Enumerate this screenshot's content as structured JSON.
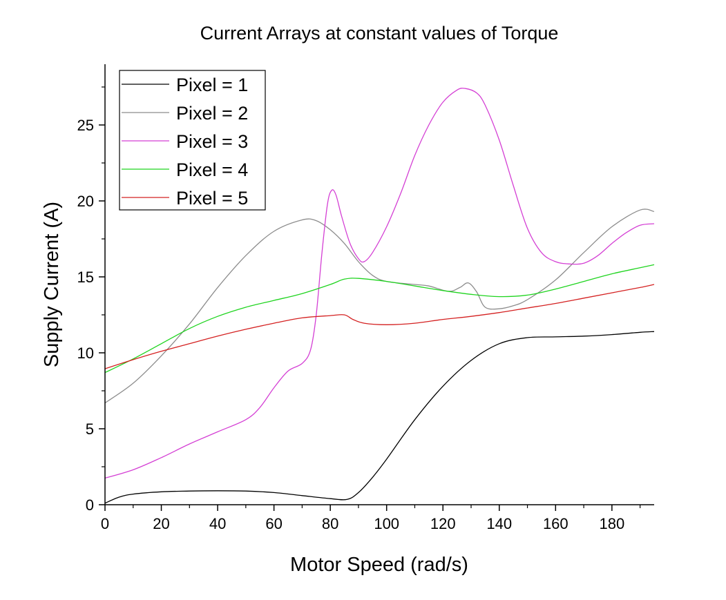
{
  "chart_data": {
    "type": "line",
    "title": "Current Arrays at constant values of Torque",
    "xlabel": "Motor Speed (rad/s)",
    "ylabel": "Supply Current (A)",
    "xlim": [
      0,
      195
    ],
    "ylim": [
      0,
      29
    ],
    "x_ticks": [
      0,
      20,
      40,
      60,
      80,
      100,
      120,
      140,
      160,
      180
    ],
    "y_ticks": [
      0,
      5,
      10,
      15,
      20,
      25
    ],
    "grid": false,
    "legend_position": "top-left",
    "series": [
      {
        "name": "Pixel = 1",
        "color": "#000000",
        "points": [
          [
            0,
            0.1
          ],
          [
            5,
            0.5
          ],
          [
            10,
            0.7
          ],
          [
            20,
            0.85
          ],
          [
            30,
            0.9
          ],
          [
            40,
            0.92
          ],
          [
            50,
            0.9
          ],
          [
            60,
            0.8
          ],
          [
            70,
            0.6
          ],
          [
            80,
            0.4
          ],
          [
            86,
            0.35
          ],
          [
            90,
            0.8
          ],
          [
            95,
            1.8
          ],
          [
            100,
            3
          ],
          [
            110,
            5.6
          ],
          [
            120,
            7.8
          ],
          [
            130,
            9.5
          ],
          [
            140,
            10.6
          ],
          [
            150,
            11.0
          ],
          [
            160,
            11.05
          ],
          [
            170,
            11.1
          ],
          [
            180,
            11.2
          ],
          [
            190,
            11.35
          ],
          [
            195,
            11.4
          ]
        ]
      },
      {
        "name": "Pixel = 2",
        "color": "#8c8c8c",
        "points": [
          [
            0,
            6.7
          ],
          [
            10,
            8
          ],
          [
            20,
            9.8
          ],
          [
            30,
            11.9
          ],
          [
            40,
            14.3
          ],
          [
            50,
            16.4
          ],
          [
            60,
            18
          ],
          [
            70,
            18.75
          ],
          [
            75,
            18.7
          ],
          [
            80,
            18.1
          ],
          [
            85,
            17.2
          ],
          [
            90,
            16
          ],
          [
            95,
            15.1
          ],
          [
            100,
            14.7
          ],
          [
            110,
            14.5
          ],
          [
            115,
            14.4
          ],
          [
            122,
            14.05
          ],
          [
            126,
            14.3
          ],
          [
            129,
            14.6
          ],
          [
            132,
            14
          ],
          [
            135,
            13
          ],
          [
            140,
            12.9
          ],
          [
            145,
            13.1
          ],
          [
            150,
            13.5
          ],
          [
            160,
            14.8
          ],
          [
            170,
            16.6
          ],
          [
            180,
            18.3
          ],
          [
            190,
            19.4
          ],
          [
            195,
            19.3
          ]
        ]
      },
      {
        "name": "Pixel = 3",
        "color": "#d43fd4",
        "points": [
          [
            0,
            1.75
          ],
          [
            10,
            2.3
          ],
          [
            20,
            3.1
          ],
          [
            30,
            4.0
          ],
          [
            40,
            4.8
          ],
          [
            50,
            5.6
          ],
          [
            55,
            6.4
          ],
          [
            60,
            7.7
          ],
          [
            65,
            8.8
          ],
          [
            70,
            9.3
          ],
          [
            73,
            10.2
          ],
          [
            75,
            12.5
          ],
          [
            77,
            16.5
          ],
          [
            79,
            19.8
          ],
          [
            80.5,
            20.7
          ],
          [
            82,
            20.4
          ],
          [
            84,
            19
          ],
          [
            87,
            17.2
          ],
          [
            90,
            16.2
          ],
          [
            92,
            16
          ],
          [
            95,
            16.6
          ],
          [
            100,
            18.3
          ],
          [
            105,
            20.5
          ],
          [
            110,
            23
          ],
          [
            115,
            25
          ],
          [
            120,
            26.5
          ],
          [
            125,
            27.3
          ],
          [
            128,
            27.4
          ],
          [
            132,
            27.1
          ],
          [
            135,
            26.3
          ],
          [
            140,
            24
          ],
          [
            145,
            21
          ],
          [
            150,
            18.2
          ],
          [
            155,
            16.6
          ],
          [
            160,
            16
          ],
          [
            165,
            15.85
          ],
          [
            170,
            15.9
          ],
          [
            175,
            16.4
          ],
          [
            180,
            17.2
          ],
          [
            185,
            17.9
          ],
          [
            190,
            18.4
          ],
          [
            195,
            18.5
          ]
        ]
      },
      {
        "name": "Pixel = 4",
        "color": "#1ed41e",
        "points": [
          [
            0,
            8.7
          ],
          [
            10,
            9.6
          ],
          [
            20,
            10.6
          ],
          [
            30,
            11.6
          ],
          [
            40,
            12.4
          ],
          [
            50,
            13
          ],
          [
            60,
            13.45
          ],
          [
            70,
            13.9
          ],
          [
            80,
            14.5
          ],
          [
            85,
            14.85
          ],
          [
            90,
            14.9
          ],
          [
            100,
            14.7
          ],
          [
            110,
            14.4
          ],
          [
            120,
            14.1
          ],
          [
            130,
            13.85
          ],
          [
            140,
            13.7
          ],
          [
            150,
            13.8
          ],
          [
            160,
            14.2
          ],
          [
            170,
            14.7
          ],
          [
            180,
            15.2
          ],
          [
            190,
            15.6
          ],
          [
            195,
            15.8
          ]
        ]
      },
      {
        "name": "Pixel = 5",
        "color": "#d42020",
        "points": [
          [
            0,
            8.95
          ],
          [
            10,
            9.55
          ],
          [
            20,
            10.1
          ],
          [
            30,
            10.6
          ],
          [
            40,
            11.1
          ],
          [
            50,
            11.55
          ],
          [
            60,
            11.95
          ],
          [
            70,
            12.3
          ],
          [
            80,
            12.45
          ],
          [
            85,
            12.5
          ],
          [
            88,
            12.2
          ],
          [
            92,
            11.95
          ],
          [
            100,
            11.85
          ],
          [
            110,
            11.95
          ],
          [
            120,
            12.2
          ],
          [
            130,
            12.4
          ],
          [
            140,
            12.65
          ],
          [
            150,
            12.95
          ],
          [
            160,
            13.25
          ],
          [
            170,
            13.6
          ],
          [
            180,
            13.95
          ],
          [
            190,
            14.3
          ],
          [
            195,
            14.5
          ]
        ]
      }
    ]
  }
}
